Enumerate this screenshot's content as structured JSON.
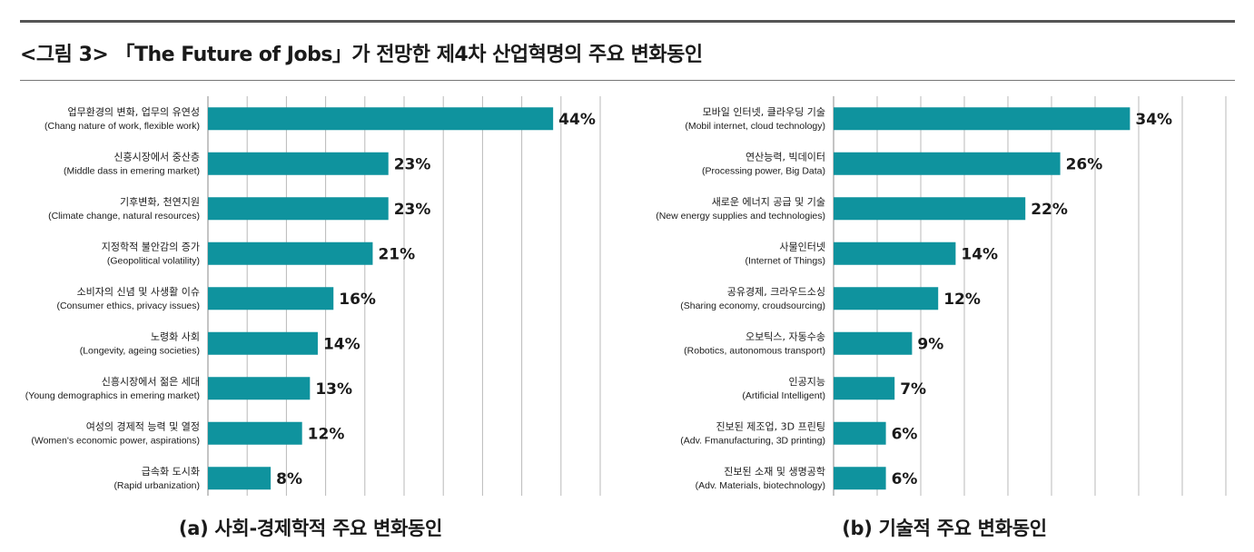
{
  "figure_title": "<그림 3> 「The Future of Jobs」가 전망한 제4차 산업혁명의 주요 변화동인",
  "colors": {
    "bar": "#0f939e",
    "grid": "#b9b9b9",
    "text": "#1a1a1a"
  },
  "chart_data": [
    {
      "type": "bar",
      "orientation": "horizontal",
      "caption": "(a) 사회-경제학적 주요 변화동인",
      "categories": [
        {
          "ko": "업무환경의 변화, 업무의 유연성",
          "en": "(Chang nature of work, flexible work)"
        },
        {
          "ko": "신흥시장에서 중산층",
          "en": "(Middle dass in emering market)"
        },
        {
          "ko": "기후변화, 천연지원",
          "en": "(Climate change, natural resources)"
        },
        {
          "ko": "지정학적 불안감의 증가",
          "en": "(Geopolitical volatility)"
        },
        {
          "ko": "소비자의 신념 및 사생활 이슈",
          "en": "(Consumer ethics, privacy issues)"
        },
        {
          "ko": "노령화 사회",
          "en": "(Longevity, ageing societies)"
        },
        {
          "ko": "신흥시장에서 젊은 세대",
          "en": "(Young demographics in emering market)"
        },
        {
          "ko": "여성의 경제적 능력 및 열정",
          "en": "(Women's economic power, aspirations)"
        },
        {
          "ko": "급속화 도시화",
          "en": "(Rapid urbanization)"
        }
      ],
      "values": [
        44,
        23,
        23,
        21,
        16,
        14,
        13,
        12,
        8
      ],
      "value_labels": [
        "44%",
        "23%",
        "23%",
        "21%",
        "16%",
        "14%",
        "13%",
        "12%",
        "8%"
      ],
      "xlim": [
        0,
        50
      ],
      "grid_step": 5,
      "grid": true,
      "legend": "none"
    },
    {
      "type": "bar",
      "orientation": "horizontal",
      "caption": "(b) 기술적 주요 변화동인",
      "categories": [
        {
          "ko": "모바일 인터넷, 클라우딩 기술",
          "en": "(Mobil internet, cloud technology)"
        },
        {
          "ko": "연산능력, 빅데이터",
          "en": "(Processing power, Big Data)"
        },
        {
          "ko": "새로운 에너지 공급 및 기술",
          "en": "(New energy supplies and technologies)"
        },
        {
          "ko": "사물인터넷",
          "en": "(Internet of Things)"
        },
        {
          "ko": "공유경제, 크라우드소싱",
          "en": "(Sharing economy, croudsourcing)"
        },
        {
          "ko": "오보틱스, 자동수송",
          "en": "(Robotics, autonomous transport)"
        },
        {
          "ko": "인공지능",
          "en": "(Artificial Intelligent)"
        },
        {
          "ko": "진보된 제조업, 3D 프린팅",
          "en": "(Adv. Fmanufacturing, 3D printing)"
        },
        {
          "ko": "진보된 소재 및 생명공학",
          "en": "(Adv. Materials, biotechnology)"
        }
      ],
      "values": [
        34,
        26,
        22,
        14,
        12,
        9,
        7,
        6,
        6
      ],
      "value_labels": [
        "34%",
        "26%",
        "22%",
        "14%",
        "12%",
        "9%",
        "7%",
        "6%",
        "6%"
      ],
      "xlim": [
        0,
        45
      ],
      "grid_step": 5,
      "grid": true,
      "legend": "none"
    }
  ]
}
